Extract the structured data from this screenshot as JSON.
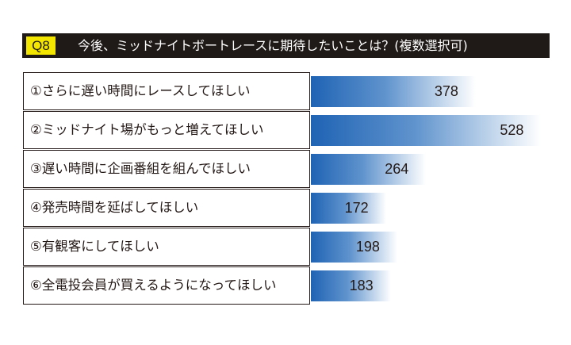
{
  "header": {
    "badge": "Q8",
    "title": "今後、ミッドナイトボートレースに期待したいことは？(複数選択可)"
  },
  "chart_data": {
    "type": "bar",
    "orientation": "horizontal",
    "categories": [
      "①さらに遅い時間にレースしてほしい",
      "②ミッドナイト場がもっと増えてほしい",
      "③遅い時間に企画番組を組んでほしい",
      "④発売時間を延ばしてほしい",
      "⑤有観客にしてほしい",
      "⑥全電投会員が買えるようになってほしい"
    ],
    "values": [
      378,
      528,
      264,
      172,
      198,
      183
    ],
    "data_labels": [
      "378",
      "528",
      "264",
      "172",
      "198",
      "183"
    ],
    "colors": {
      "bar_start": "#1f63b4",
      "bar_end": "#ffffff",
      "header_bg": "#1f1a17",
      "badge_bg": "#f3e600"
    }
  }
}
